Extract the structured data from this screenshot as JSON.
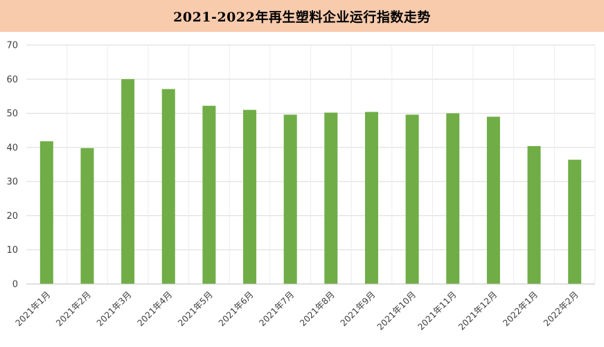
{
  "chart_data": {
    "type": "bar",
    "title": "2021-2022年再生塑料企业运行指数走势",
    "categories": [
      "2021年1月",
      "2021年2月",
      "2021年3月",
      "2021年4月",
      "2021年5月",
      "2021年6月",
      "2021年7月",
      "2021年8月",
      "2021年9月",
      "2021年10月",
      "2021年11月",
      "2021年12月",
      "2022年1月",
      "2022年2月"
    ],
    "values": [
      41.8,
      39.8,
      60.0,
      57.1,
      52.2,
      51.0,
      49.6,
      50.2,
      50.4,
      49.6,
      50.0,
      49.0,
      40.4,
      36.4
    ],
    "ylim": [
      0,
      70
    ],
    "yticks": [
      0,
      10,
      20,
      30,
      40,
      50,
      60,
      70
    ],
    "grid": true,
    "legend": "none",
    "bar_color": "#70ad47",
    "title_background": "#f8cbad"
  }
}
